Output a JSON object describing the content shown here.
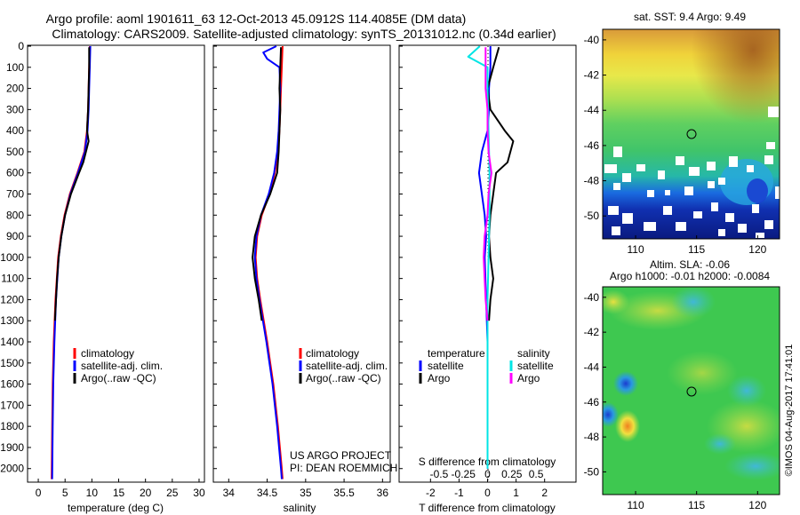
{
  "header": {
    "line1": "Argo profile: aoml 1901611_63 12-Oct-2013 45.0912S 114.4085E (DM data)",
    "line2": "Climatology: CARS2009. Satellite-adjusted climatology: synTS_20131012.nc (0.34d earlier)"
  },
  "credit": {
    "line1": "US ARGO PROJECT",
    "line2": "PI: DEAN ROEMMICH"
  },
  "footer_stamp": "©IMOS 04-Aug-2017 17:41:01",
  "colors": {
    "climatology": "#ff0000",
    "satellite": "#0000ff",
    "argo": "#000000",
    "sal_satellite": "#00e5e5",
    "sal_argo": "#ff00ff"
  },
  "chart_data": [
    {
      "type": "line",
      "xlabel": "temperature (deg C)",
      "xticks": [
        0,
        5,
        10,
        15,
        20,
        25,
        30
      ],
      "xlim": [
        -2,
        31
      ],
      "ylim": [
        2060,
        0
      ],
      "yticks": [
        0,
        100,
        200,
        300,
        400,
        500,
        600,
        700,
        800,
        900,
        1000,
        1100,
        1200,
        1300,
        1400,
        1500,
        1600,
        1700,
        1800,
        1900,
        2000
      ],
      "legend": [
        "climatology",
        "satellite-adj. clim.",
        "Argo(..raw -QC)"
      ],
      "series": [
        {
          "name": "climatology",
          "color": "#ff0000",
          "depth": [
            0,
            100,
            200,
            300,
            400,
            500,
            600,
            700,
            800,
            900,
            1000,
            1200,
            1400,
            1600,
            1800,
            2050
          ],
          "values": [
            9.6,
            9.5,
            9.4,
            9.3,
            9.1,
            8.6,
            7.3,
            5.9,
            4.9,
            4.2,
            3.7,
            3.2,
            2.9,
            2.7,
            2.6,
            2.5
          ]
        },
        {
          "name": "satellite-adj. clim.",
          "color": "#0000ff",
          "depth": [
            0,
            100,
            200,
            300,
            400,
            500,
            600,
            700,
            800,
            900,
            1000,
            1200,
            1400,
            1600,
            1800,
            2050
          ],
          "values": [
            9.7,
            9.6,
            9.5,
            9.4,
            9.2,
            8.7,
            7.4,
            6.0,
            5.0,
            4.3,
            3.8,
            3.3,
            3.0,
            2.8,
            2.7,
            2.6
          ]
        },
        {
          "name": "Argo(..raw -QC)",
          "color": "#000000",
          "depth": [
            5,
            100,
            200,
            300,
            400,
            450,
            500,
            550,
            600,
            700,
            800,
            900,
            1000,
            1100,
            1200,
            1300
          ],
          "values": [
            9.5,
            9.5,
            9.4,
            9.3,
            9.1,
            9.4,
            8.9,
            8.4,
            7.6,
            6.1,
            5.0,
            4.3,
            3.8,
            3.5,
            3.3,
            3.1
          ]
        }
      ]
    },
    {
      "type": "line",
      "xlabel": "salinity",
      "xticks": [
        34,
        34.5,
        35,
        35.5,
        36
      ],
      "xlim": [
        33.8,
        36.1
      ],
      "ylim": [
        2060,
        0
      ],
      "legend": [
        "climatology",
        "satellite-adj. clim.",
        "Argo(..raw -QC)"
      ],
      "series": [
        {
          "name": "climatology",
          "color": "#ff0000",
          "depth": [
            0,
            100,
            200,
            300,
            400,
            500,
            600,
            700,
            800,
            900,
            1000,
            1100,
            1200,
            1400,
            1600,
            1800,
            2000,
            2050
          ],
          "values": [
            34.7,
            34.69,
            34.68,
            34.67,
            34.66,
            34.64,
            34.6,
            34.53,
            34.43,
            34.37,
            34.35,
            34.37,
            34.41,
            34.5,
            34.58,
            34.64,
            34.69,
            34.7
          ]
        },
        {
          "name": "satellite-adj. clim.",
          "color": "#0000ff",
          "depth": [
            0,
            30,
            60,
            100,
            200,
            300,
            400,
            500,
            600,
            700,
            800,
            900,
            1000,
            1100,
            1200,
            1400,
            1600,
            1800,
            2000,
            2050
          ],
          "values": [
            34.62,
            34.45,
            34.5,
            34.66,
            34.67,
            34.66,
            34.65,
            34.63,
            34.59,
            34.52,
            34.42,
            34.36,
            34.34,
            34.36,
            34.4,
            34.49,
            34.57,
            34.63,
            34.68,
            34.69
          ]
        },
        {
          "name": "Argo(..raw -QC)",
          "color": "#000000",
          "depth": [
            5,
            100,
            200,
            300,
            400,
            500,
            600,
            700,
            800,
            900,
            1000,
            1100,
            1200,
            1300
          ],
          "values": [
            34.68,
            34.67,
            34.66,
            34.67,
            34.66,
            34.65,
            34.63,
            34.54,
            34.42,
            34.34,
            34.31,
            34.34,
            34.39,
            34.43
          ]
        }
      ]
    },
    {
      "type": "line",
      "xlabel": "T difference from climatology",
      "xticks": [
        -2,
        -1,
        0,
        1,
        2
      ],
      "xtick_labels": [
        "-2",
        "-1",
        "0",
        "1",
        "2"
      ],
      "xlabel_top": "S difference from climatology",
      "xticks_top": [
        -0.5,
        -0.25,
        0,
        0.25,
        0.5
      ],
      "xtick_labels_top": [
        "-0.5",
        "-0.25",
        "0",
        "0.25",
        "0.5"
      ],
      "xlim": [
        -3.1,
        3.1
      ],
      "ylim": [
        2060,
        0
      ],
      "legend_titles": [
        "temperature",
        "salinity"
      ],
      "legend": [
        "satellite",
        "Argo",
        "satellite",
        "Argo"
      ],
      "series": [
        {
          "name": "satellite",
          "group": "temperature",
          "color": "#0000ff",
          "depth": [
            0,
            100,
            200,
            300,
            400,
            500,
            600,
            700,
            800,
            900,
            1000,
            1200,
            1400,
            1600,
            1800,
            2000
          ],
          "values": [
            0.1,
            0.1,
            0.05,
            0.05,
            0.0,
            -0.2,
            -0.3,
            -0.2,
            -0.1,
            -0.05,
            -0.1,
            -0.05,
            0.0,
            0.0,
            0.0,
            0.0
          ]
        },
        {
          "name": "Argo",
          "group": "temperature",
          "color": "#000000",
          "depth": [
            5,
            100,
            200,
            300,
            400,
            450,
            500,
            550,
            600,
            700,
            800,
            900,
            1000,
            1100,
            1200,
            1300
          ],
          "values": [
            0.4,
            0.2,
            0.0,
            0.1,
            0.6,
            0.9,
            0.8,
            0.7,
            0.3,
            0.2,
            0.1,
            0.05,
            0.1,
            0.2,
            0.1,
            0.05
          ]
        },
        {
          "name": "satellite",
          "group": "salinity",
          "color": "#00e5e5",
          "depth": [
            0,
            50,
            100,
            200,
            400,
            600,
            800,
            1000,
            1200,
            1400,
            1600,
            1800,
            2000
          ],
          "values": [
            -0.08,
            -0.2,
            0.0,
            0.0,
            0.01,
            0.02,
            0.02,
            0.01,
            0.0,
            0.0,
            0.0,
            0.0,
            0.0
          ]
        },
        {
          "name": "Argo",
          "group": "salinity",
          "color": "#ff00ff",
          "depth": [
            5,
            100,
            200,
            300,
            400,
            500,
            600,
            700,
            800,
            900,
            1000,
            1100,
            1200,
            1300
          ],
          "values": [
            -0.02,
            -0.02,
            -0.02,
            0.0,
            0.0,
            0.01,
            0.04,
            0.01,
            0.0,
            -0.03,
            -0.04,
            -0.03,
            -0.02,
            0.0
          ]
        }
      ]
    },
    {
      "type": "heatmap",
      "title": "sat. SST: 9.4 Argo: 9.49",
      "xticks": [
        110,
        115,
        120
      ],
      "yticks": [
        -40,
        -42,
        -44,
        -46,
        -48,
        -50
      ],
      "xlim": [
        107.3,
        121.8
      ],
      "ylim": [
        -51.3,
        -39.4
      ],
      "marker": {
        "lon": 114.41,
        "lat": -45.09
      }
    },
    {
      "type": "heatmap",
      "title": "Altim. SLA: -0.06",
      "subtitle": "Argo h1000: -0.01 h2000: -0.0084",
      "xticks": [
        110,
        115,
        120
      ],
      "yticks": [
        -40,
        -42,
        -44,
        -46,
        -48,
        -50
      ],
      "xlim": [
        107.3,
        121.8
      ],
      "ylim": [
        -51.3,
        -39.4
      ],
      "marker": {
        "lon": 114.41,
        "lat": -45.09
      }
    }
  ]
}
